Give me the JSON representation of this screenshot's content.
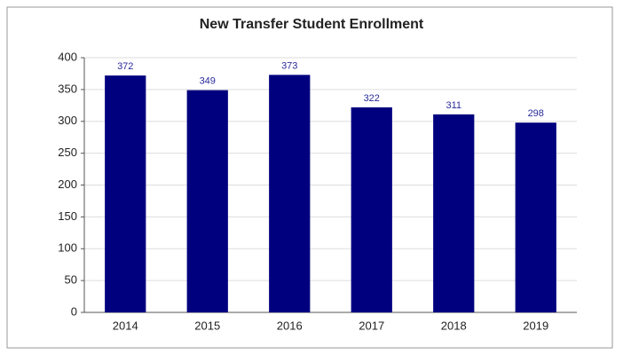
{
  "chart_data": {
    "type": "bar",
    "title": "New Transfer Student Enrollment",
    "categories": [
      "2014",
      "2015",
      "2016",
      "2017",
      "2018",
      "2019"
    ],
    "values": [
      372,
      349,
      373,
      322,
      311,
      298
    ],
    "color": "#00007f",
    "ylim": [
      0,
      400
    ],
    "yticks": [
      0,
      50,
      100,
      150,
      200,
      250,
      300,
      350,
      400
    ],
    "grid": true
  }
}
